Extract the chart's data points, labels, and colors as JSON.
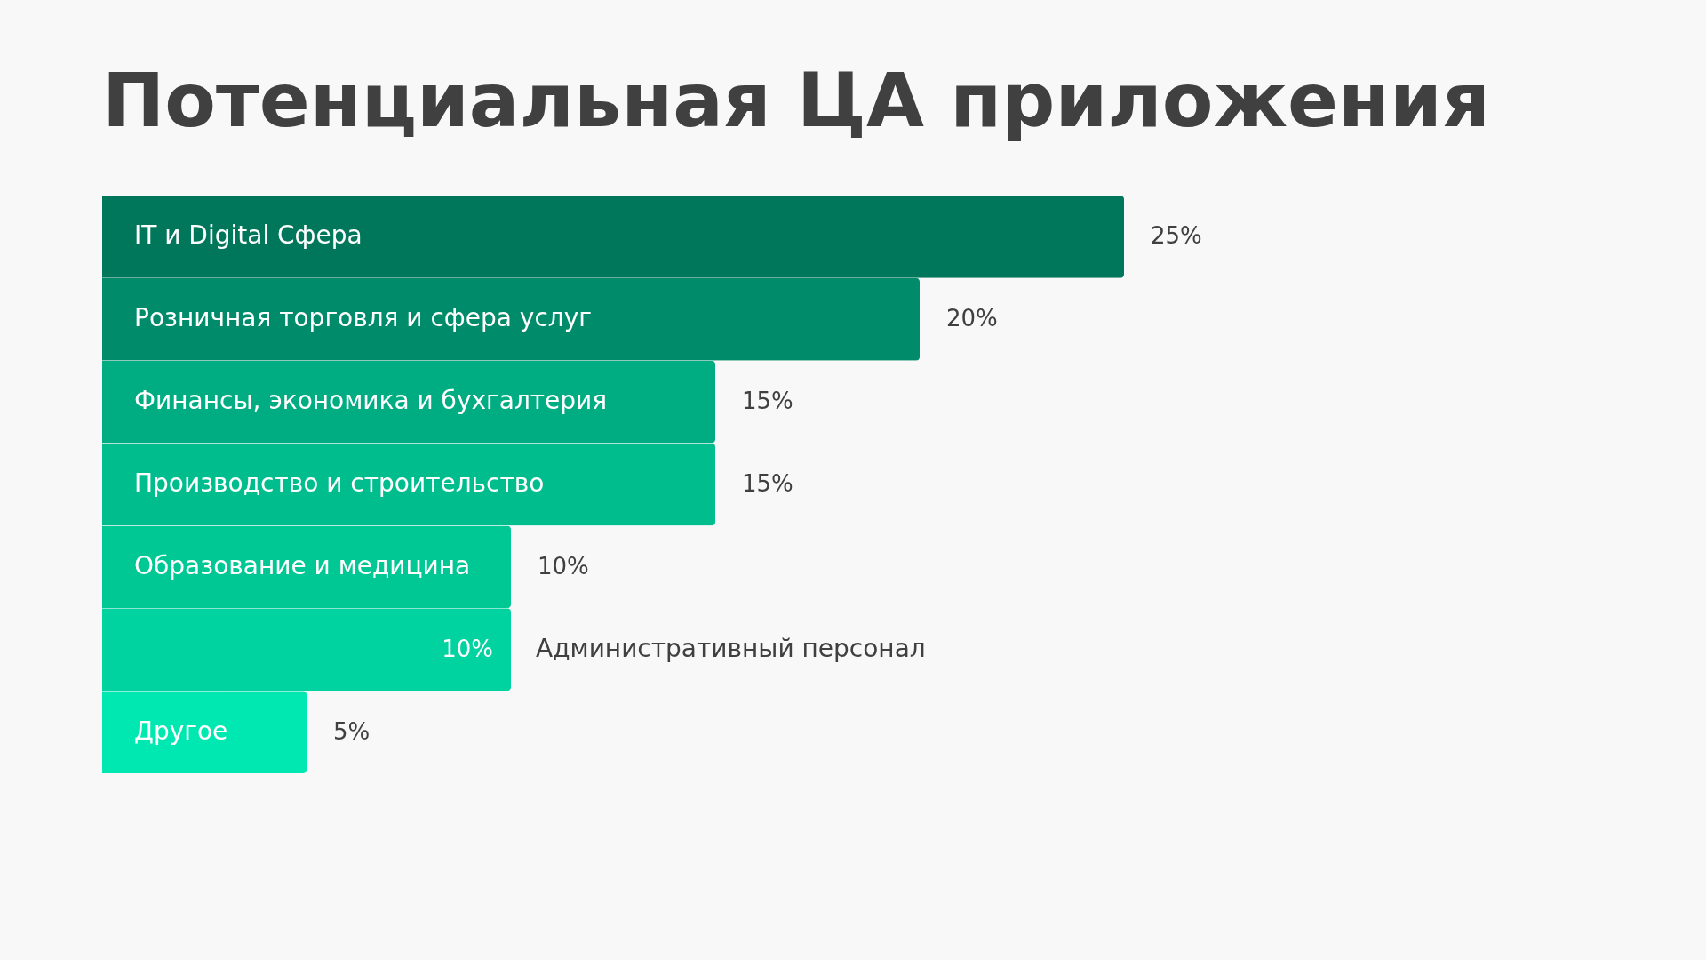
{
  "chart_data": {
    "type": "bar",
    "orientation": "horizontal",
    "title": "Потенциальная ЦА приложения",
    "categories": [
      "IT и Digital Сфера",
      "Розничная торговля и сфера услуг",
      "Финансы, экономика и бухгалтерия",
      "Производство и строительство",
      "Образование и медицина",
      "Административный персонал",
      "Другое"
    ],
    "values": [
      25,
      20,
      15,
      15,
      10,
      10,
      5
    ],
    "colors": [
      "#00775a",
      "#008c6a",
      "#00ad82",
      "#00bd8e",
      "#00c895",
      "#00d2a0",
      "#00e8b2"
    ],
    "value_labels": [
      "25%",
      "20%",
      "15%",
      "15%",
      "10%",
      "10%",
      "5%"
    ],
    "data_labels": true,
    "legend": false
  }
}
